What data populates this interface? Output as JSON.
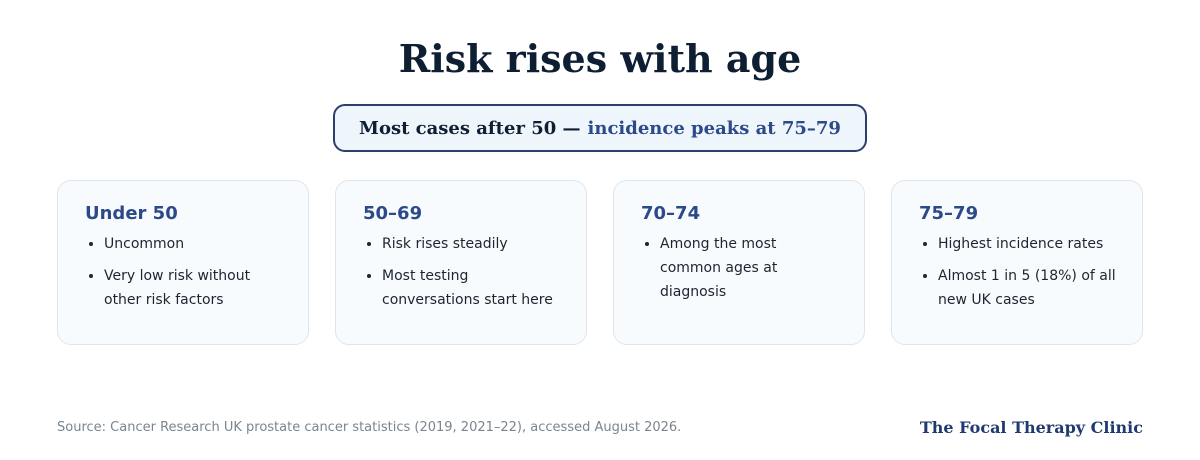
{
  "header": {
    "title": "Risk rises with age"
  },
  "banner": {
    "lead": "Most cases after 50 —",
    "highlight": "incidence peaks at 75–79"
  },
  "cards": [
    {
      "title": "Under 50",
      "bullets": [
        "Uncommon",
        "Very low risk without other risk factors"
      ]
    },
    {
      "title": "50–69",
      "bullets": [
        "Risk rises steadily",
        "Most testing conversations start here"
      ]
    },
    {
      "title": "70–74",
      "bullets": [
        "Among the most common ages at diagnosis"
      ]
    },
    {
      "title": "75–79",
      "bullets": [
        "Highest incidence rates",
        "Almost 1 in 5 (18%) of all new UK cases"
      ]
    }
  ],
  "footer": {
    "source": "Source: Cancer Research UK prostate cancer statistics (2019, 2021–22), accessed August 2026.",
    "brand": "The Focal Therapy Clinic"
  }
}
